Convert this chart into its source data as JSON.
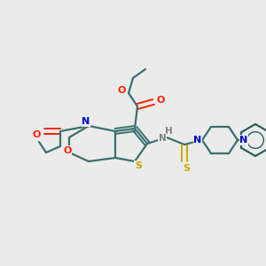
{
  "background_color": "#ebebeb",
  "bond_color": "#3a7070",
  "n_color": "#0000cc",
  "o_color": "#ff2200",
  "s_color": "#ccaa00",
  "h_color": "#808080",
  "phenyl_color": "#2a6060",
  "figsize": [
    3.0,
    3.0
  ],
  "dpi": 100,
  "xlim": [
    0,
    300
  ],
  "ylim": [
    0,
    300
  ]
}
